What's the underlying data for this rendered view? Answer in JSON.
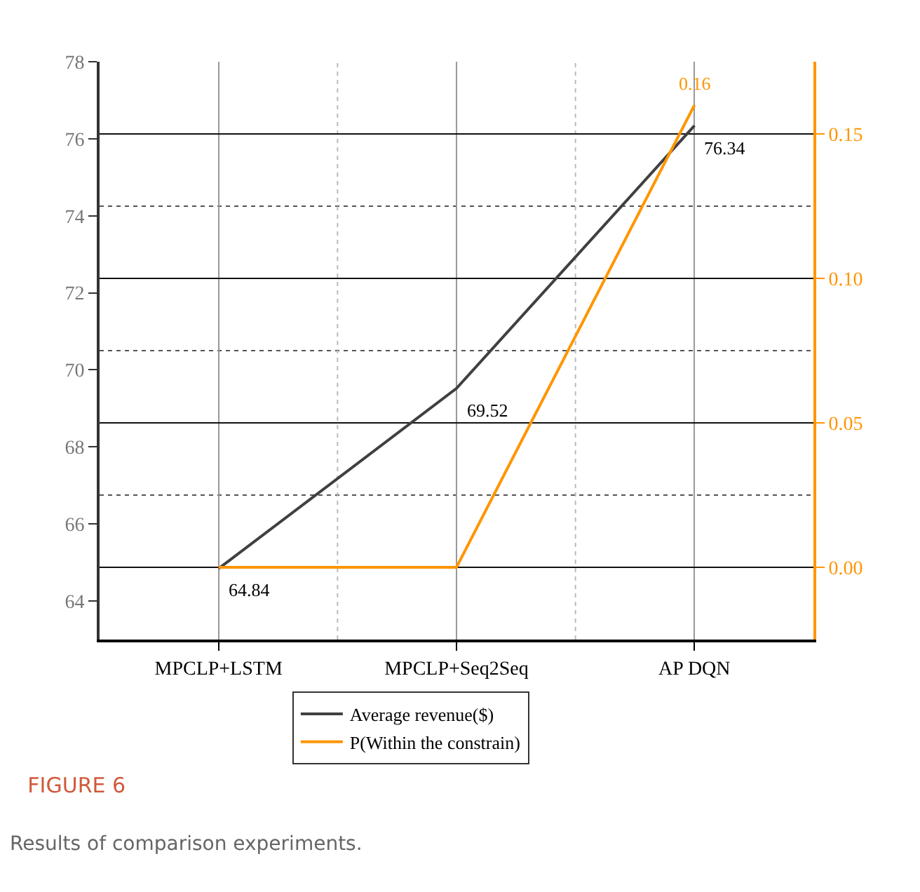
{
  "chart_data": {
    "type": "line",
    "title": "FIGURE 6",
    "subtitle": "Results of comparison experiments.",
    "categories": [
      "MPCLP+LSTM",
      "MPCLP+Seq2Seq",
      "AP DQN"
    ],
    "series": [
      {
        "name": "Average revenue($)",
        "color": "#404040",
        "values": [
          64.84,
          69.52,
          76.34
        ],
        "value_labels": [
          "64.84",
          "69.52",
          "76.34"
        ]
      },
      {
        "name": "P(Within the constrain)",
        "color": "#ff9500",
        "axis": "y2",
        "values": [
          0,
          0,
          0.16
        ],
        "value_labels": [
          null,
          null,
          "0.16"
        ]
      }
    ],
    "ylim": [
      63,
      78
    ],
    "yticks": [
      64,
      66,
      68,
      70,
      72,
      74,
      76,
      78
    ],
    "y2lim": [
      -0.025,
      0.175
    ],
    "y2ticks": [
      {
        "value": 0,
        "label": "0.00"
      },
      {
        "value": 0.05,
        "label": "0.05"
      },
      {
        "value": 0.1,
        "label": "0.10"
      },
      {
        "value": 0.15,
        "label": "0.15"
      }
    ],
    "grid": true,
    "legend": "bottom",
    "marker": "none",
    "line_style": "solid"
  }
}
